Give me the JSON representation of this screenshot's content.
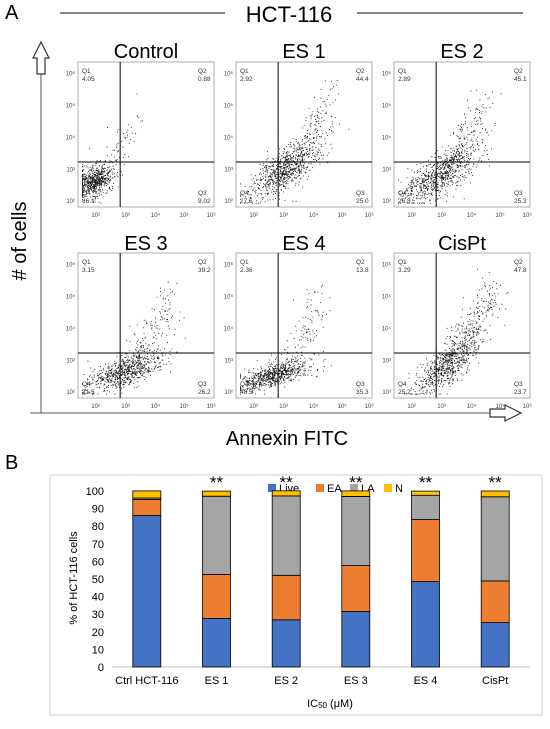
{
  "panel_a": {
    "letter": "A",
    "title": "HCT-116",
    "ylabel": "# of cells",
    "xlabel": "Annexin FITC",
    "tick_labels": [
      "10²",
      "10³",
      "10⁴",
      "10⁵",
      "10⁶"
    ],
    "plots": [
      {
        "name": "Control",
        "q1": "4.05",
        "q2": "0.88",
        "q3": "9.02",
        "q4": "86.1"
      },
      {
        "name": "ES 1",
        "q1": "2.92",
        "q2": "44.4",
        "q3": "25.0",
        "q4": "27.6"
      },
      {
        "name": "ES 2",
        "q1": "2.89",
        "q2": "45.1",
        "q3": "25.3",
        "q4": "26.8"
      },
      {
        "name": "ES 3",
        "q1": "3.15",
        "q2": "39.2",
        "q3": "26.2",
        "q4": "31.5"
      },
      {
        "name": "ES 4",
        "q1": "2.36",
        "q2": "13.8",
        "q3": "35.3",
        "q4": "48.5"
      },
      {
        "name": "CisPt",
        "q1": "3.29",
        "q2": "47.8",
        "q3": "23.7",
        "q4": "25.2"
      }
    ]
  },
  "panel_b": {
    "letter": "B",
    "ylabel": "% of HCT-116 cells",
    "xlabel": "IC50 (μM)",
    "significance": "**",
    "colors": {
      "Live": "#4472c4",
      "EA": "#ed7d31",
      "LA": "#a5a5a5",
      "N": "#ffc000"
    }
  },
  "chart_data": {
    "type": "bar",
    "stacked": true,
    "categories": [
      "Ctrl HCT-116",
      "ES 1",
      "ES 2",
      "ES 3",
      "ES 4",
      "CisPt"
    ],
    "series": [
      {
        "name": "Live",
        "values": [
          86.1,
          27.6,
          26.8,
          31.5,
          48.5,
          25.2
        ]
      },
      {
        "name": "EA",
        "values": [
          9.02,
          25.0,
          25.3,
          26.2,
          35.3,
          23.7
        ]
      },
      {
        "name": "LA",
        "values": [
          0.88,
          44.4,
          45.1,
          39.2,
          13.8,
          47.8
        ]
      },
      {
        "name": "N",
        "values": [
          4.05,
          2.92,
          2.89,
          3.15,
          2.36,
          3.29
        ]
      }
    ],
    "annotations": [
      "",
      "**",
      "**",
      "**",
      "**",
      "**"
    ],
    "ylabel": "% of HCT-116 cells",
    "xlabel": "IC50 (μM)",
    "ylim": [
      0,
      100
    ],
    "yticks": [
      0,
      10,
      20,
      30,
      40,
      50,
      60,
      70,
      80,
      90,
      100
    ],
    "legend": "top",
    "grid": false
  }
}
